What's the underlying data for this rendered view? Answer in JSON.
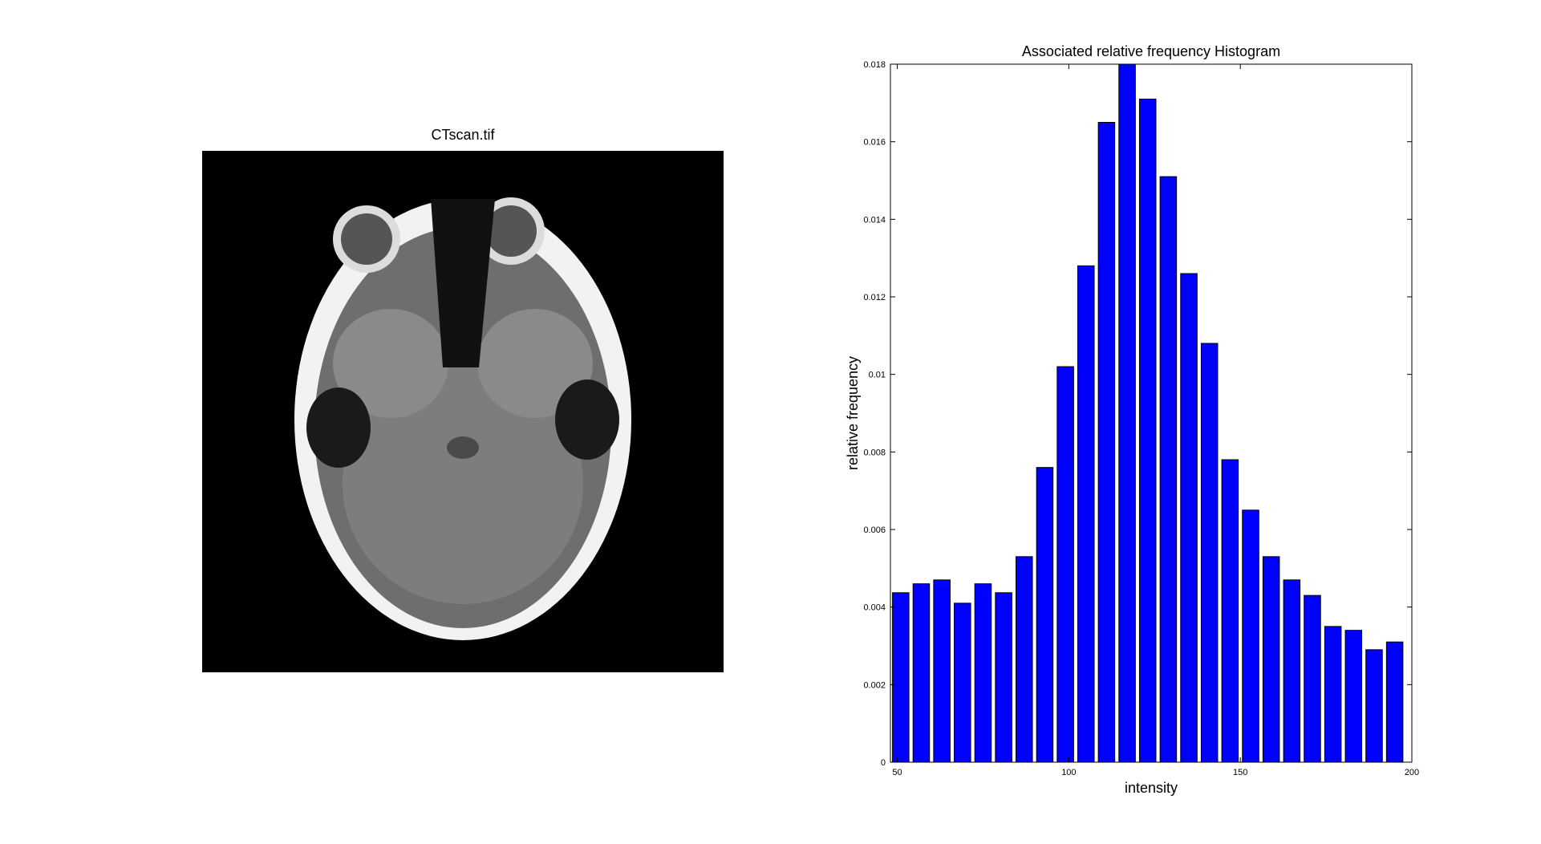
{
  "image_panel": {
    "title": "CTscan.tif",
    "icon": "ct-scan-image"
  },
  "chart_data": {
    "type": "bar",
    "title": "Associated relative frequency Histogram",
    "xlabel": "intensity",
    "ylabel": "relative frequency",
    "xlim": [
      48,
      200
    ],
    "ylim": [
      0,
      0.018
    ],
    "xticks": [
      50,
      100,
      150,
      200
    ],
    "yticks": [
      0,
      0.002,
      0.004,
      0.006,
      0.008,
      0.01,
      0.012,
      0.014,
      0.016,
      0.018
    ],
    "xtick_labels": [
      "50",
      "100",
      "150",
      "200"
    ],
    "ytick_labels": [
      "0",
      "0.002",
      "0.004",
      "0.006",
      "0.008",
      "0.01",
      "0.012",
      "0.014",
      "0.016",
      "0.018"
    ],
    "bin_width": 6,
    "x": [
      51,
      57,
      63,
      69,
      75,
      81,
      87,
      93,
      99,
      105,
      111,
      117,
      123,
      129,
      135,
      141,
      147,
      153,
      159,
      165,
      171,
      177,
      183,
      189,
      195
    ],
    "values": [
      0.00437,
      0.0046,
      0.0047,
      0.0041,
      0.0046,
      0.00437,
      0.0053,
      0.0076,
      0.0102,
      0.0128,
      0.0165,
      0.018,
      0.0171,
      0.0151,
      0.0126,
      0.0108,
      0.0078,
      0.0065,
      0.0053,
      0.0047,
      0.0043,
      0.0035,
      0.0034,
      0.0029,
      0.0031
    ],
    "bar_color": "#0000ff",
    "grid": false
  }
}
